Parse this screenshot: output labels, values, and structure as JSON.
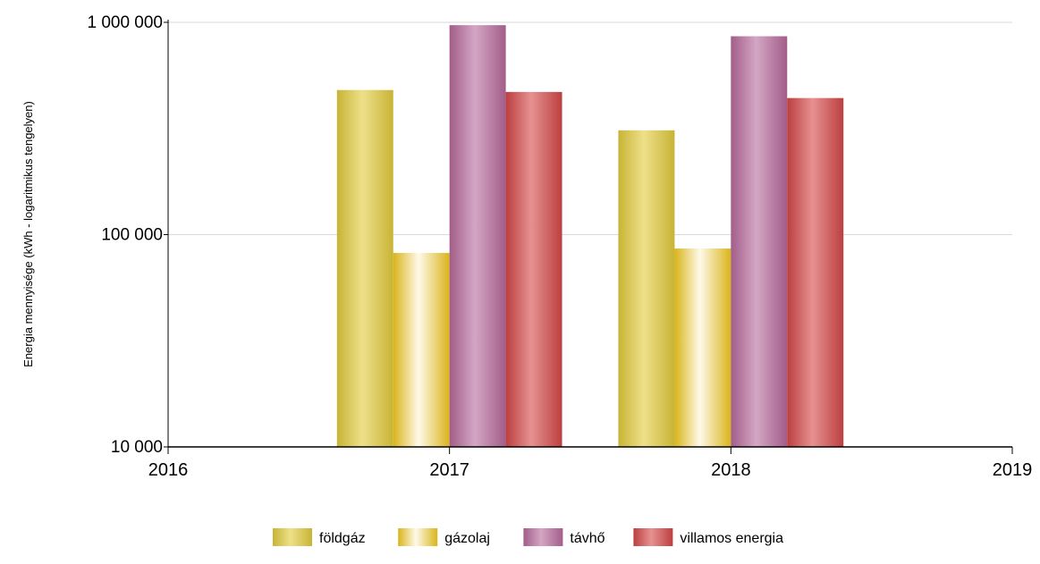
{
  "chart_data": {
    "type": "bar",
    "title": "",
    "xlabel": "",
    "ylabel": "Energia mennyisége (kWh - logaritmikus tengelyen)",
    "yscale": "log",
    "ylim": [
      10000,
      1000000
    ],
    "xlim": [
      2016,
      2019
    ],
    "y_ticks": [
      10000,
      100000,
      1000000
    ],
    "y_tick_labels": [
      "10 000",
      "100 000",
      "1 000 000"
    ],
    "x_ticks": [
      2016,
      2017,
      2018,
      2019
    ],
    "x_tick_labels": [
      "2016",
      "2017",
      "2018",
      "2019"
    ],
    "categories": [
      2017,
      2018
    ],
    "grid": true,
    "legend_position": "bottom",
    "series": [
      {
        "name": "földgáz",
        "color": "#e2cc3c",
        "values": [
          480000,
          310000
        ]
      },
      {
        "name": "gázolaj",
        "color": "#f8cc1e",
        "values": [
          82000,
          86000
        ]
      },
      {
        "name": "távhő",
        "color": "#b86a9c",
        "values": [
          970000,
          860000
        ]
      },
      {
        "name": "villamos energia",
        "color": "#d64848",
        "values": [
          470000,
          440000
        ]
      }
    ]
  }
}
